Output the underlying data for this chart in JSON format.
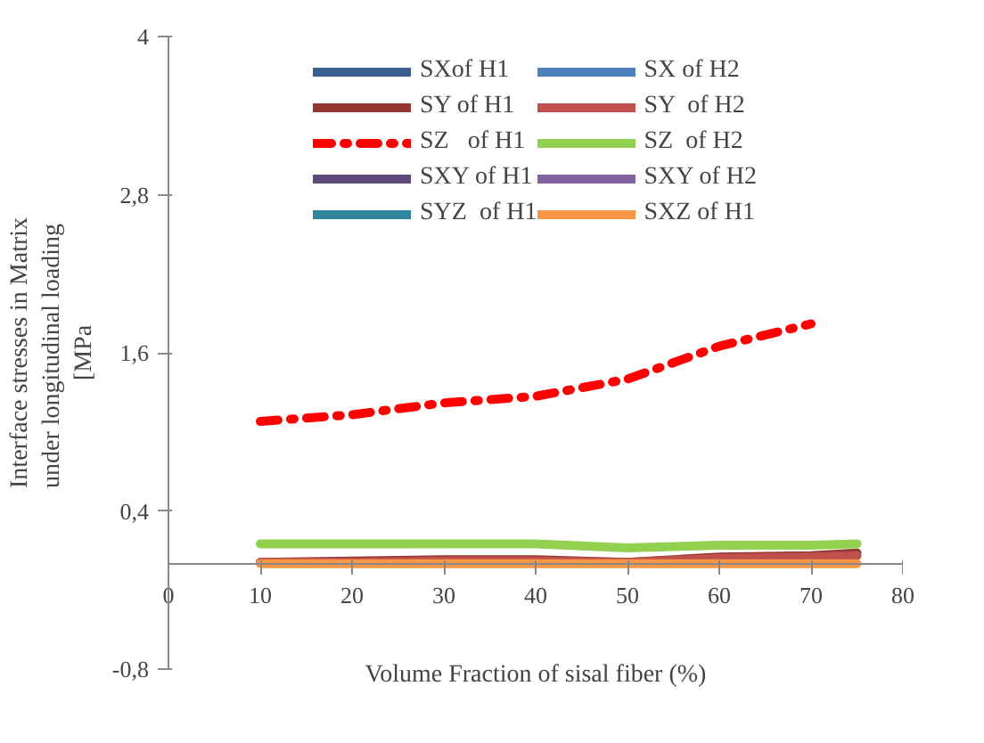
{
  "chart_data": {
    "type": "line",
    "xlabel": "Volume Fraction of sisal fiber (%)",
    "ylabel": "Interface stresses in Matrix\nunder longitudinal  loading\n[MPa",
    "x": [
      10,
      20,
      30,
      40,
      50,
      60,
      70,
      75
    ],
    "xlim": [
      0,
      80
    ],
    "xticks": [
      0,
      10,
      20,
      30,
      40,
      50,
      60,
      70,
      80
    ],
    "ylim": [
      -0.8,
      4
    ],
    "yticks": [
      {
        "value": -0.8,
        "label": "-0,8"
      },
      {
        "value": 0.4,
        "label": "0,4"
      },
      {
        "value": 1.6,
        "label": "1,6"
      },
      {
        "value": 2.8,
        "label": "2,8"
      },
      4
    ],
    "grid": false,
    "legend": "top",
    "line_style": "solid",
    "marker": "none",
    "series": [
      {
        "name": "SXof H1",
        "color": "#3a5f8f",
        "values": [
          null,
          null,
          null,
          null,
          null,
          null,
          null,
          null
        ]
      },
      {
        "name": "SY of H1",
        "color": "#953735",
        "values": [
          0.01,
          0.02,
          0.03,
          0.03,
          0.01,
          0.05,
          0.06,
          0.08
        ]
      },
      {
        "name": "SZ   of H1",
        "color": "#ff0000",
        "line_style": "dashdot",
        "x": [
          10,
          20,
          30,
          40,
          50,
          60,
          70
        ],
        "values": [
          1.08,
          1.13,
          1.22,
          1.27,
          1.4,
          1.65,
          1.82
        ]
      },
      {
        "name": "SXY of H1",
        "color": "#604a7b",
        "values": [
          null,
          null,
          null,
          null,
          null,
          null,
          null,
          null
        ]
      },
      {
        "name": "SYZ  of H1",
        "color": "#31859c",
        "values": [
          null,
          null,
          null,
          null,
          null,
          null,
          null,
          null
        ]
      },
      {
        "name": "SXZ of H1",
        "color": "#f79646",
        "values": [
          0.0,
          0.0,
          0.0,
          0.0,
          0.0,
          0.0,
          0.0,
          0.0
        ]
      },
      {
        "name": "SX of H2",
        "color": "#4f81bd",
        "values": [
          null,
          null,
          null,
          null,
          null,
          null,
          null,
          null
        ]
      },
      {
        "name": "SY  of H2",
        "color": "#c0504d",
        "values": [
          0.01,
          0.01,
          0.02,
          0.02,
          0.01,
          0.04,
          0.05,
          0.06
        ]
      },
      {
        "name": "SZ  of H2",
        "color": "#92d050",
        "values": [
          0.15,
          0.15,
          0.15,
          0.15,
          0.12,
          0.14,
          0.14,
          0.15
        ]
      },
      {
        "name": "SXY of H2",
        "color": "#8064a2",
        "values": [
          null,
          null,
          null,
          null,
          null,
          null,
          null,
          null
        ]
      }
    ]
  }
}
